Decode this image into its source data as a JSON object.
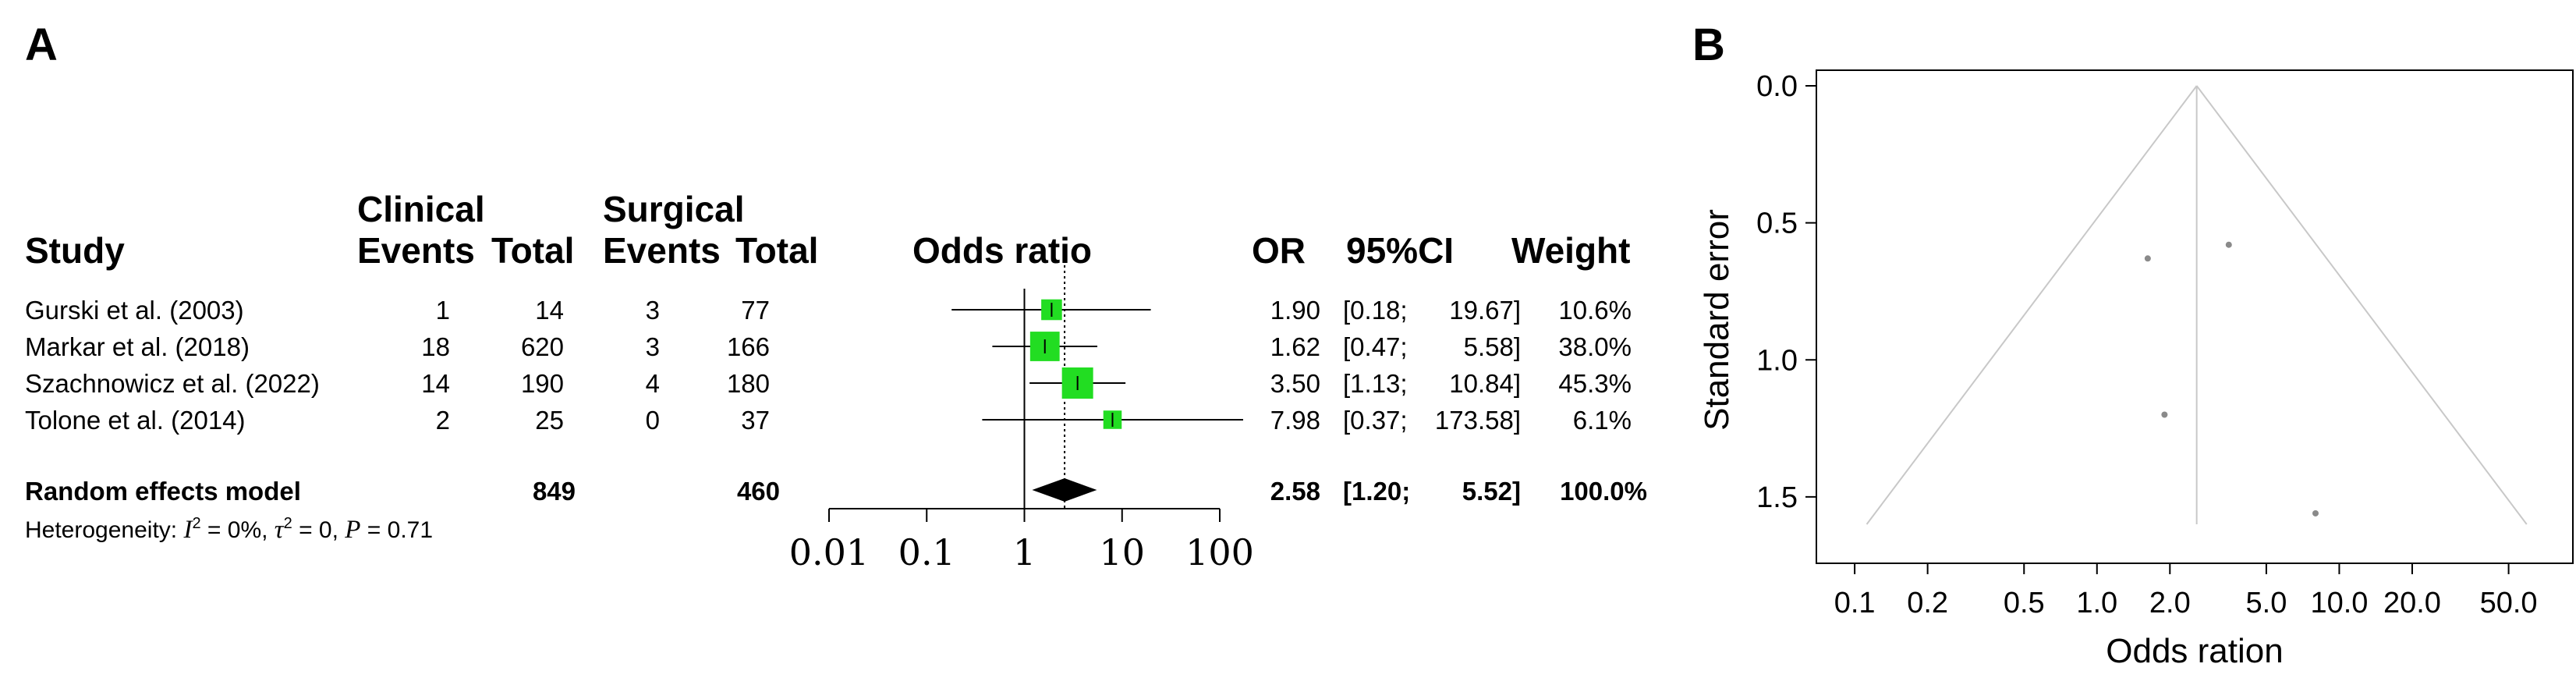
{
  "panel_labels": {
    "a": "A",
    "b": "B"
  },
  "colors": {
    "box": "#22dd22",
    "diamond": "#000000",
    "line": "#000000",
    "funnel": "#c8c8c8",
    "point": "#8a8a8a",
    "ref": "#777777"
  },
  "forest": {
    "headers": {
      "clinical": "Clinical",
      "surgical": "Surgical",
      "study": "Study",
      "events": "Events",
      "total": "Total",
      "odds_ratio": "Odds ratio",
      "or": "OR",
      "ci": "95%CI",
      "weight": "Weight"
    },
    "pooled": {
      "label": "Random effects model",
      "clinical_total": "849",
      "surgical_total": "460",
      "or": "2.58",
      "ci_low": "[1.20;",
      "ci_high": "5.52]",
      "weight": "100.0%"
    },
    "heterogeneity": {
      "prefix": "Heterogeneity: ",
      "i2": "I",
      "i2_sup": "2",
      "i2_val": " = 0%, ",
      "tau": "τ",
      "tau_sup": "2",
      "tau_val": " = 0, ",
      "p": "P",
      "p_val": " = 0.71"
    }
  },
  "chart_data": [
    {
      "type": "forest",
      "studies": [
        {
          "study": "Gurski et al. (2003)",
          "c_events": "1",
          "c_total": "14",
          "s_events": "3",
          "s_total": "77",
          "or": 1.9,
          "ci": [
            0.18,
            19.67
          ],
          "or_text": "1.90",
          "ci_low_text": "[0.18;",
          "ci_high_text": "19.67]",
          "weight": "10.6%",
          "w": 10.6
        },
        {
          "study": "Markar et al. (2018)",
          "c_events": "18",
          "c_total": "620",
          "s_events": "3",
          "s_total": "166",
          "or": 1.62,
          "ci": [
            0.47,
            5.58
          ],
          "or_text": "1.62",
          "ci_low_text": "[0.47;",
          "ci_high_text": "5.58]",
          "weight": "38.0%",
          "w": 38.0
        },
        {
          "study": "Szachnowicz et al. (2022)",
          "c_events": "14",
          "c_total": "190",
          "s_events": "4",
          "s_total": "180",
          "or": 3.5,
          "ci": [
            1.13,
            10.84
          ],
          "or_text": "3.50",
          "ci_low_text": "[1.13;",
          "ci_high_text": "10.84]",
          "weight": "45.3%",
          "w": 45.3
        },
        {
          "study": "Tolone et al. (2014)",
          "c_events": "2",
          "c_total": "25",
          "s_events": "0",
          "s_total": "37",
          "or": 7.98,
          "ci": [
            0.37,
            173.58
          ],
          "or_text": "7.98",
          "ci_low_text": "[0.37;",
          "ci_high_text": "173.58]",
          "weight": "6.1%",
          "w": 6.1
        }
      ],
      "pooled": {
        "or": 2.58,
        "ci": [
          1.2,
          5.52
        ]
      },
      "xscale": "log",
      "xlim": [
        0.01,
        100
      ],
      "xticks": [
        0.01,
        0.1,
        1,
        10,
        100
      ],
      "xtick_labels": [
        "0.01",
        "0.1",
        "1",
        "10",
        "100"
      ]
    },
    {
      "type": "scatter",
      "subtype": "funnel",
      "xlabel": "Odds ration",
      "ylabel": "Standard error",
      "xscale": "log",
      "xticks": [
        0.1,
        0.2,
        0.5,
        1.0,
        2.0,
        5.0,
        10.0,
        20.0,
        50.0
      ],
      "xtick_labels": [
        "0.1",
        "0.2",
        "0.5",
        "1.0",
        "2.0",
        "5.0",
        "10.0",
        "20.0",
        "50.0"
      ],
      "xlim": [
        0.08,
        80
      ],
      "yticks": [
        0.0,
        0.5,
        1.0,
        1.5
      ],
      "ytick_labels": [
        "0.0",
        "0.5",
        "1.0",
        "1.5"
      ],
      "ylim": [
        0.0,
        1.6
      ],
      "y_reversed": true,
      "points": [
        {
          "x": 1.62,
          "y": 0.63
        },
        {
          "x": 3.5,
          "y": 0.58
        },
        {
          "x": 1.9,
          "y": 1.2
        },
        {
          "x": 7.98,
          "y": 1.56
        }
      ],
      "center": 2.58
    }
  ]
}
